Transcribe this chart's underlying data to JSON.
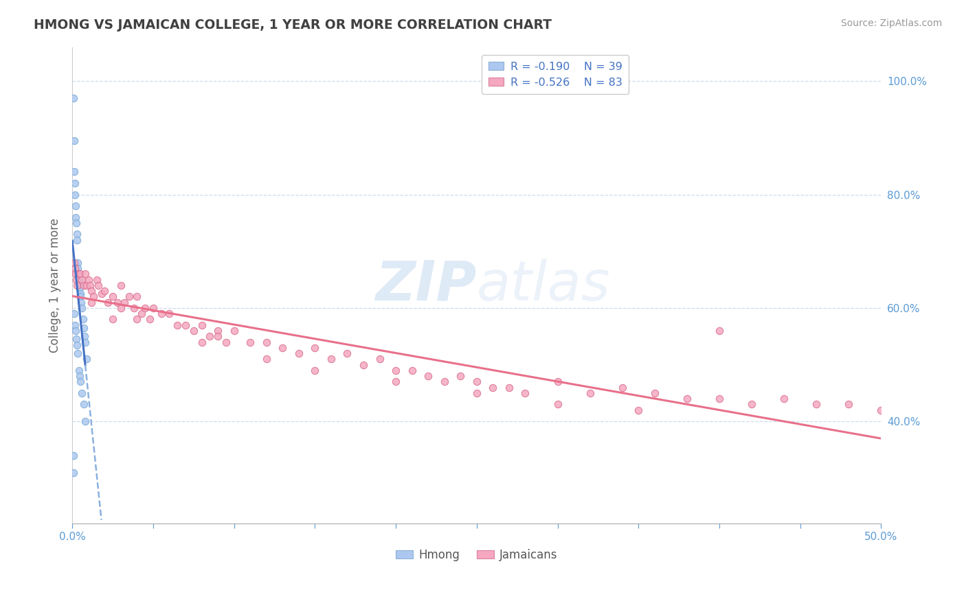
{
  "title": "HMONG VS JAMAICAN COLLEGE, 1 YEAR OR MORE CORRELATION CHART",
  "source": "Source: ZipAtlas.com",
  "ylabel": "College, 1 year or more",
  "ylabel_right_ticks": [
    "40.0%",
    "60.0%",
    "80.0%",
    "100.0%"
  ],
  "ylabel_right_vals": [
    0.4,
    0.6,
    0.8,
    1.0
  ],
  "xmin": 0.0,
  "xmax": 0.5,
  "ymin": 0.22,
  "ymax": 1.06,
  "legend_r_hmong": "R = -0.190",
  "legend_n_hmong": "N = 39",
  "legend_r_jamaican": "R = -0.526",
  "legend_n_jamaican": "N = 83",
  "hmong_color": "#adc8f0",
  "jamaican_color": "#f5a8c0",
  "hmong_line_color": "#4472c4",
  "jamaican_line_color": "#e8708a",
  "hmong_dashed_color": "#8ab0e0",
  "watermark_color": "#dce8f5",
  "hmong_x": [
    0.0008,
    0.001,
    0.0012,
    0.0015,
    0.0018,
    0.002,
    0.0022,
    0.0025,
    0.0028,
    0.003,
    0.0033,
    0.0035,
    0.0038,
    0.004,
    0.0042,
    0.0045,
    0.0048,
    0.005,
    0.0055,
    0.006,
    0.0065,
    0.007,
    0.0075,
    0.008,
    0.009,
    0.001,
    0.0015,
    0.002,
    0.0025,
    0.003,
    0.0035,
    0.004,
    0.0045,
    0.005,
    0.006,
    0.007,
    0.008,
    0.0009,
    0.0006
  ],
  "hmong_y": [
    0.97,
    0.895,
    0.84,
    0.82,
    0.8,
    0.78,
    0.76,
    0.75,
    0.73,
    0.72,
    0.68,
    0.67,
    0.66,
    0.65,
    0.64,
    0.635,
    0.625,
    0.62,
    0.61,
    0.6,
    0.58,
    0.565,
    0.55,
    0.54,
    0.51,
    0.59,
    0.57,
    0.56,
    0.545,
    0.535,
    0.52,
    0.49,
    0.48,
    0.47,
    0.45,
    0.43,
    0.4,
    0.34,
    0.31
  ],
  "jamaican_x": [
    0.001,
    0.0015,
    0.002,
    0.0025,
    0.003,
    0.004,
    0.005,
    0.006,
    0.007,
    0.008,
    0.009,
    0.01,
    0.011,
    0.012,
    0.013,
    0.015,
    0.016,
    0.018,
    0.02,
    0.022,
    0.025,
    0.028,
    0.03,
    0.032,
    0.035,
    0.038,
    0.04,
    0.043,
    0.045,
    0.048,
    0.05,
    0.055,
    0.06,
    0.065,
    0.07,
    0.075,
    0.08,
    0.085,
    0.09,
    0.095,
    0.1,
    0.11,
    0.12,
    0.13,
    0.14,
    0.15,
    0.16,
    0.17,
    0.18,
    0.19,
    0.2,
    0.21,
    0.22,
    0.23,
    0.24,
    0.25,
    0.26,
    0.27,
    0.28,
    0.3,
    0.32,
    0.34,
    0.36,
    0.38,
    0.4,
    0.42,
    0.44,
    0.46,
    0.48,
    0.5,
    0.03,
    0.04,
    0.08,
    0.12,
    0.15,
    0.2,
    0.25,
    0.3,
    0.35,
    0.4,
    0.012,
    0.025,
    0.09
  ],
  "jamaican_y": [
    0.68,
    0.67,
    0.66,
    0.65,
    0.64,
    0.66,
    0.66,
    0.65,
    0.64,
    0.66,
    0.64,
    0.65,
    0.64,
    0.63,
    0.62,
    0.65,
    0.64,
    0.625,
    0.63,
    0.61,
    0.62,
    0.61,
    0.64,
    0.61,
    0.62,
    0.6,
    0.62,
    0.59,
    0.6,
    0.58,
    0.6,
    0.59,
    0.59,
    0.57,
    0.57,
    0.56,
    0.57,
    0.55,
    0.56,
    0.54,
    0.56,
    0.54,
    0.54,
    0.53,
    0.52,
    0.53,
    0.51,
    0.52,
    0.5,
    0.51,
    0.49,
    0.49,
    0.48,
    0.47,
    0.48,
    0.47,
    0.46,
    0.46,
    0.45,
    0.47,
    0.45,
    0.46,
    0.45,
    0.44,
    0.44,
    0.43,
    0.44,
    0.43,
    0.43,
    0.42,
    0.6,
    0.58,
    0.54,
    0.51,
    0.49,
    0.47,
    0.45,
    0.43,
    0.42,
    0.56,
    0.61,
    0.58,
    0.55
  ]
}
